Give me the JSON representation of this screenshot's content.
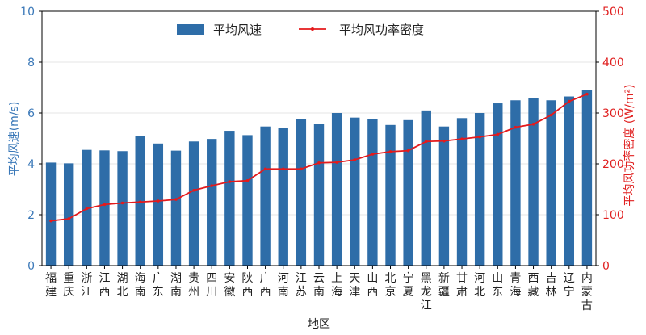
{
  "chart_data": {
    "type": "bar",
    "xlabel": "地区",
    "ylabel_left": "平均风速(m/s)",
    "ylabel_right": "平均风功率密度 (W/m²)",
    "ylim_left": [
      0,
      10
    ],
    "ylim_right": [
      0,
      500
    ],
    "yticks_left": [
      0,
      2,
      4,
      6,
      8,
      10
    ],
    "yticks_right": [
      0,
      100,
      200,
      300,
      400,
      500
    ],
    "legend_position": "top-center",
    "grid": true,
    "categories": [
      "福建",
      "重庆",
      "浙江",
      "江西",
      "湖北",
      "海南",
      "广东",
      "湖南",
      "贵州",
      "四川",
      "安徽",
      "陕西",
      "广西",
      "河南",
      "江苏",
      "云南",
      "上海",
      "天津",
      "山西",
      "北京",
      "宁夏",
      "黑龙江",
      "新疆",
      "甘肃",
      "河北",
      "山东",
      "青海",
      "西藏",
      "吉林",
      "辽宁",
      "内蒙古"
    ],
    "series": [
      {
        "name": "平均风速",
        "kind": "bar",
        "axis": "left",
        "color": "#2e6da8",
        "values": [
          4.05,
          4.02,
          4.55,
          4.53,
          4.5,
          5.08,
          4.8,
          4.52,
          4.88,
          4.98,
          5.3,
          5.13,
          5.47,
          5.42,
          5.75,
          5.57,
          6.0,
          5.82,
          5.75,
          5.53,
          5.72,
          6.1,
          5.47,
          5.8,
          6.0,
          6.38,
          6.5,
          6.6,
          6.5,
          6.65,
          6.92
        ]
      },
      {
        "name": "平均风功率密度",
        "kind": "line",
        "axis": "right",
        "color": "#e41a1c",
        "values": [
          88,
          92,
          112,
          120,
          123,
          125,
          127,
          130,
          148,
          157,
          165,
          167,
          190,
          190,
          190,
          202,
          203,
          208,
          219,
          224,
          226,
          244,
          245,
          249,
          253,
          258,
          272,
          278,
          296,
          323,
          337
        ]
      }
    ]
  }
}
